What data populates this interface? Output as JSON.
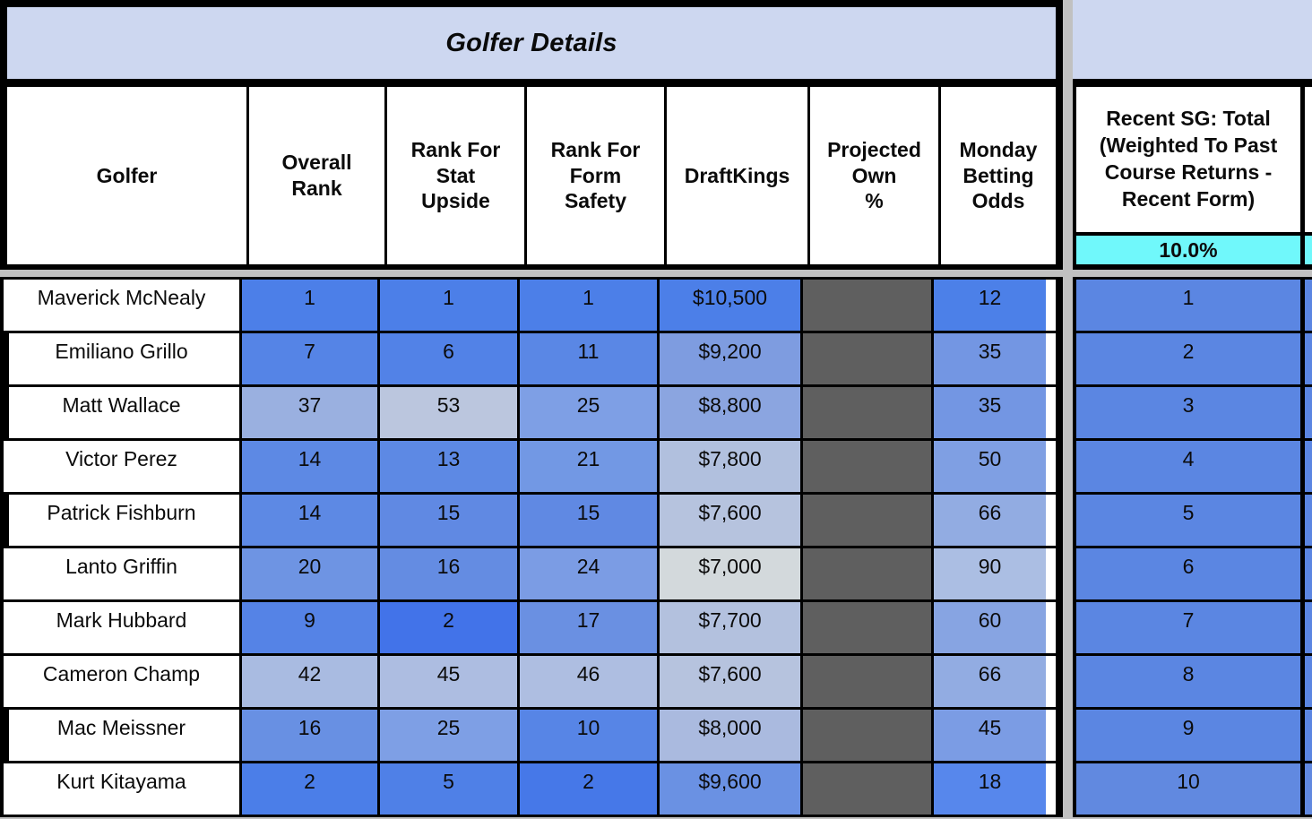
{
  "banner": {
    "title": "Golfer Details"
  },
  "headers": {
    "golfer": "Golfer",
    "overall": "Overall\nRank",
    "stat": "Rank For\nStat\nUpside",
    "form": "Rank For\nForm\nSafety",
    "dk": "DraftKings",
    "own": "Projected\nOwn\n%",
    "odds": "Monday\nBetting\nOdds"
  },
  "right_table": {
    "header": "Recent SG: Total\n(Weighted To Past\nCourse Returns -\nRecent Form)",
    "weight_value": "10.0%"
  },
  "colors": {
    "banner_bg": "#cdd7f0",
    "cyan_bg": "#70f8fb",
    "own_fill": "#5f5f5f",
    "gap_gray": "#c1c1c1"
  },
  "rows": [
    {
      "golfer": "Maverick McNealy",
      "overall": {
        "v": "1",
        "bg": "#4c7fe8"
      },
      "stat": {
        "v": "1",
        "bg": "#4c7fe8"
      },
      "form": {
        "v": "1",
        "bg": "#4c7fe8"
      },
      "dk": {
        "v": "$10,500",
        "bg": "#4c7fe8"
      },
      "odds": {
        "v": "12",
        "bg": "#4c80e8"
      },
      "sg": {
        "v": "1",
        "bg": "#5b86e2"
      }
    },
    {
      "golfer": "Emiliano Grillo",
      "overall": {
        "v": "7",
        "bg": "#5584e6"
      },
      "stat": {
        "v": "6",
        "bg": "#5282e7"
      },
      "form": {
        "v": "11",
        "bg": "#5a87e5"
      },
      "dk": {
        "v": "$9,200",
        "bg": "#7e9ce0"
      },
      "odds": {
        "v": "35",
        "bg": "#7396e3"
      },
      "sg": {
        "v": "2",
        "bg": "#5b86e2"
      }
    },
    {
      "golfer": "Matt Wallace",
      "overall": {
        "v": "37",
        "bg": "#9ab0e0"
      },
      "stat": {
        "v": "53",
        "bg": "#bbc6de"
      },
      "form": {
        "v": "25",
        "bg": "#7e9fe5"
      },
      "dk": {
        "v": "$8,800",
        "bg": "#8ba5e0"
      },
      "odds": {
        "v": "35",
        "bg": "#7396e3"
      },
      "sg": {
        "v": "3",
        "bg": "#5b86e2"
      }
    },
    {
      "golfer": "Victor Perez",
      "overall": {
        "v": "14",
        "bg": "#5d89e4"
      },
      "stat": {
        "v": "13",
        "bg": "#5d89e4"
      },
      "form": {
        "v": "21",
        "bg": "#7298e4"
      },
      "dk": {
        "v": "$7,800",
        "bg": "#b1c0de"
      },
      "odds": {
        "v": "50",
        "bg": "#7f9fe3"
      },
      "sg": {
        "v": "4",
        "bg": "#5b86e2"
      }
    },
    {
      "golfer": "Patrick Fishburn",
      "overall": {
        "v": "14",
        "bg": "#5d89e4"
      },
      "stat": {
        "v": "15",
        "bg": "#6089e3"
      },
      "form": {
        "v": "15",
        "bg": "#6089e3"
      },
      "dk": {
        "v": "$7,600",
        "bg": "#b6c3de"
      },
      "odds": {
        "v": "66",
        "bg": "#92ace2"
      },
      "sg": {
        "v": "5",
        "bg": "#5b86e2"
      }
    },
    {
      "golfer": "Lanto Griffin",
      "overall": {
        "v": "20",
        "bg": "#6e94e3"
      },
      "stat": {
        "v": "16",
        "bg": "#648ce2"
      },
      "form": {
        "v": "24",
        "bg": "#7b9ce4"
      },
      "dk": {
        "v": "$7,000",
        "bg": "#d3d9dc"
      },
      "odds": {
        "v": "90",
        "bg": "#abbee3"
      },
      "sg": {
        "v": "6",
        "bg": "#5b86e2"
      }
    },
    {
      "golfer": "Mark Hubbard",
      "overall": {
        "v": "9",
        "bg": "#5583e6"
      },
      "stat": {
        "v": "2",
        "bg": "#4273e9"
      },
      "form": {
        "v": "17",
        "bg": "#6a90e2"
      },
      "dk": {
        "v": "$7,700",
        "bg": "#b3c1de"
      },
      "odds": {
        "v": "60",
        "bg": "#87a4e2"
      },
      "sg": {
        "v": "7",
        "bg": "#5b86e2"
      }
    },
    {
      "golfer": "Cameron Champ",
      "overall": {
        "v": "42",
        "bg": "#a9bbe1"
      },
      "stat": {
        "v": "45",
        "bg": "#adbde1"
      },
      "form": {
        "v": "46",
        "bg": "#aebee1"
      },
      "dk": {
        "v": "$7,600",
        "bg": "#b6c3de"
      },
      "odds": {
        "v": "66",
        "bg": "#92ace2"
      },
      "sg": {
        "v": "8",
        "bg": "#5b86e2"
      }
    },
    {
      "golfer": "Mac Meissner",
      "overall": {
        "v": "16",
        "bg": "#6890e3"
      },
      "stat": {
        "v": "25",
        "bg": "#7e9fe5"
      },
      "form": {
        "v": "10",
        "bg": "#5785e6"
      },
      "dk": {
        "v": "$8,000",
        "bg": "#aabadf"
      },
      "odds": {
        "v": "45",
        "bg": "#7b9ce4"
      },
      "sg": {
        "v": "9",
        "bg": "#5b86e2"
      }
    },
    {
      "golfer": "Kurt Kitayama",
      "overall": {
        "v": "2",
        "bg": "#4b7ee8"
      },
      "stat": {
        "v": "5",
        "bg": "#4f80e7"
      },
      "form": {
        "v": "2",
        "bg": "#4678e8"
      },
      "dk": {
        "v": "$9,600",
        "bg": "#6a91e3"
      },
      "odds": {
        "v": "18",
        "bg": "#5787ec"
      },
      "sg": {
        "v": "10",
        "bg": "#6189e0"
      }
    }
  ]
}
